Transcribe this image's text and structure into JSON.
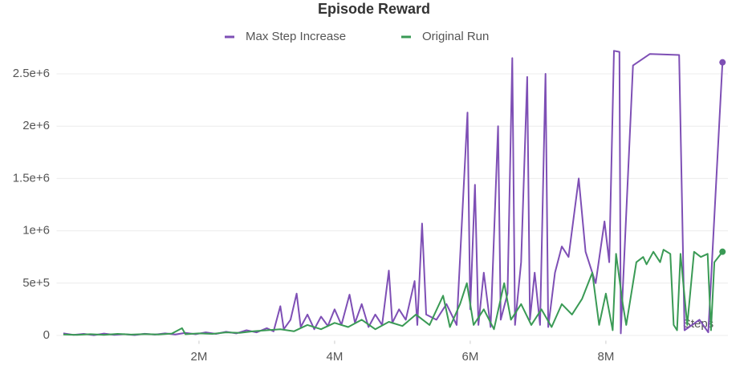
{
  "chart_data": {
    "type": "line",
    "title": "Episode Reward",
    "x_label": "Steps",
    "xlim": [
      -100000,
      9800000
    ],
    "xticks": [
      {
        "value": 2000000,
        "label": "2M"
      },
      {
        "value": 4000000,
        "label": "4M"
      },
      {
        "value": 6000000,
        "label": "6M"
      },
      {
        "value": 8000000,
        "label": "8M"
      }
    ],
    "ylim": [
      -50000,
      2750000
    ],
    "yticks": [
      0,
      {
        "value": 500000,
        "label": "5e+5"
      },
      {
        "value": 1000000,
        "label": "1e+6"
      },
      {
        "value": 1500000,
        "label": "1.5e+6"
      },
      {
        "value": 2000000,
        "label": "2e+6"
      },
      {
        "value": 2500000,
        "label": "2.5e+6"
      }
    ],
    "grid": true,
    "legend": "top",
    "series": [
      {
        "name": "Max Step Increase",
        "color": "#7e4fb5",
        "x": [
          0,
          150000,
          300000,
          450000,
          600000,
          750000,
          900000,
          1050000,
          1200000,
          1350000,
          1500000,
          1650000,
          1800000,
          1950000,
          2100000,
          2250000,
          2400000,
          2550000,
          2700000,
          2850000,
          3000000,
          3100000,
          3200000,
          3250000,
          3350000,
          3440000,
          3500000,
          3600000,
          3700000,
          3800000,
          3900000,
          4000000,
          4100000,
          4220000,
          4300000,
          4400000,
          4500000,
          4600000,
          4700000,
          4800000,
          4850000,
          4950000,
          5050000,
          5180000,
          5220000,
          5290000,
          5350000,
          5500000,
          5650000,
          5800000,
          5960000,
          6000000,
          6070000,
          6120000,
          6200000,
          6300000,
          6410000,
          6450000,
          6550000,
          6620000,
          6660000,
          6750000,
          6840000,
          6880000,
          6950000,
          7030000,
          7110000,
          7150000,
          7250000,
          7350000,
          7450000,
          7600000,
          7700000,
          7850000,
          7980000,
          8050000,
          8120000,
          8200000,
          8220000,
          8400000,
          8650000,
          9080000,
          9160000,
          9380000,
          9510000,
          9720000
        ],
        "values": [
          20000,
          5000,
          15000,
          3000,
          18000,
          6000,
          12000,
          4000,
          16000,
          8000,
          20000,
          10000,
          25000,
          12000,
          30000,
          15000,
          35000,
          20000,
          50000,
          30000,
          70000,
          40000,
          280000,
          60000,
          150000,
          400000,
          80000,
          200000,
          60000,
          180000,
          90000,
          250000,
          100000,
          390000,
          120000,
          300000,
          80000,
          200000,
          100000,
          620000,
          120000,
          250000,
          150000,
          520000,
          100000,
          1070000,
          200000,
          150000,
          300000,
          100000,
          2130000,
          250000,
          1440000,
          100000,
          600000,
          80000,
          2000000,
          150000,
          400000,
          2650000,
          100000,
          700000,
          2470000,
          150000,
          600000,
          100000,
          2500000,
          80000,
          600000,
          850000,
          750000,
          1500000,
          800000,
          500000,
          1090000,
          700000,
          2720000,
          2710000,
          20000,
          2580000,
          2690000,
          2680000,
          50000,
          150000,
          30000,
          2610000
        ]
      },
      {
        "name": "Original Run",
        "color": "#3a9a55",
        "x": [
          0,
          200000,
          400000,
          600000,
          800000,
          1000000,
          1200000,
          1400000,
          1600000,
          1750000,
          1800000,
          2000000,
          2200000,
          2400000,
          2600000,
          2800000,
          3000000,
          3200000,
          3400000,
          3600000,
          3800000,
          4000000,
          4200000,
          4400000,
          4600000,
          4800000,
          5000000,
          5200000,
          5400000,
          5600000,
          5700000,
          5850000,
          5950000,
          6050000,
          6200000,
          6350000,
          6500000,
          6600000,
          6750000,
          6900000,
          7050000,
          7200000,
          7350000,
          7500000,
          7650000,
          7800000,
          7900000,
          8000000,
          8100000,
          8150000,
          8250000,
          8300000,
          8450000,
          8550000,
          8600000,
          8700000,
          8800000,
          8850000,
          8950000,
          9000000,
          9050000,
          9100000,
          9200000,
          9300000,
          9400000,
          9500000,
          9550000,
          9600000,
          9720000
        ],
        "values": [
          10000,
          5000,
          12000,
          6000,
          15000,
          8000,
          14000,
          10000,
          18000,
          70000,
          12000,
          20000,
          15000,
          30000,
          25000,
          40000,
          50000,
          60000,
          40000,
          100000,
          60000,
          120000,
          80000,
          150000,
          60000,
          130000,
          90000,
          200000,
          100000,
          380000,
          80000,
          300000,
          500000,
          100000,
          250000,
          60000,
          500000,
          150000,
          300000,
          100000,
          250000,
          80000,
          300000,
          200000,
          350000,
          600000,
          100000,
          400000,
          50000,
          780000,
          300000,
          100000,
          700000,
          750000,
          680000,
          800000,
          700000,
          820000,
          780000,
          100000,
          50000,
          780000,
          100000,
          800000,
          750000,
          780000,
          50000,
          700000,
          800000
        ]
      }
    ]
  }
}
